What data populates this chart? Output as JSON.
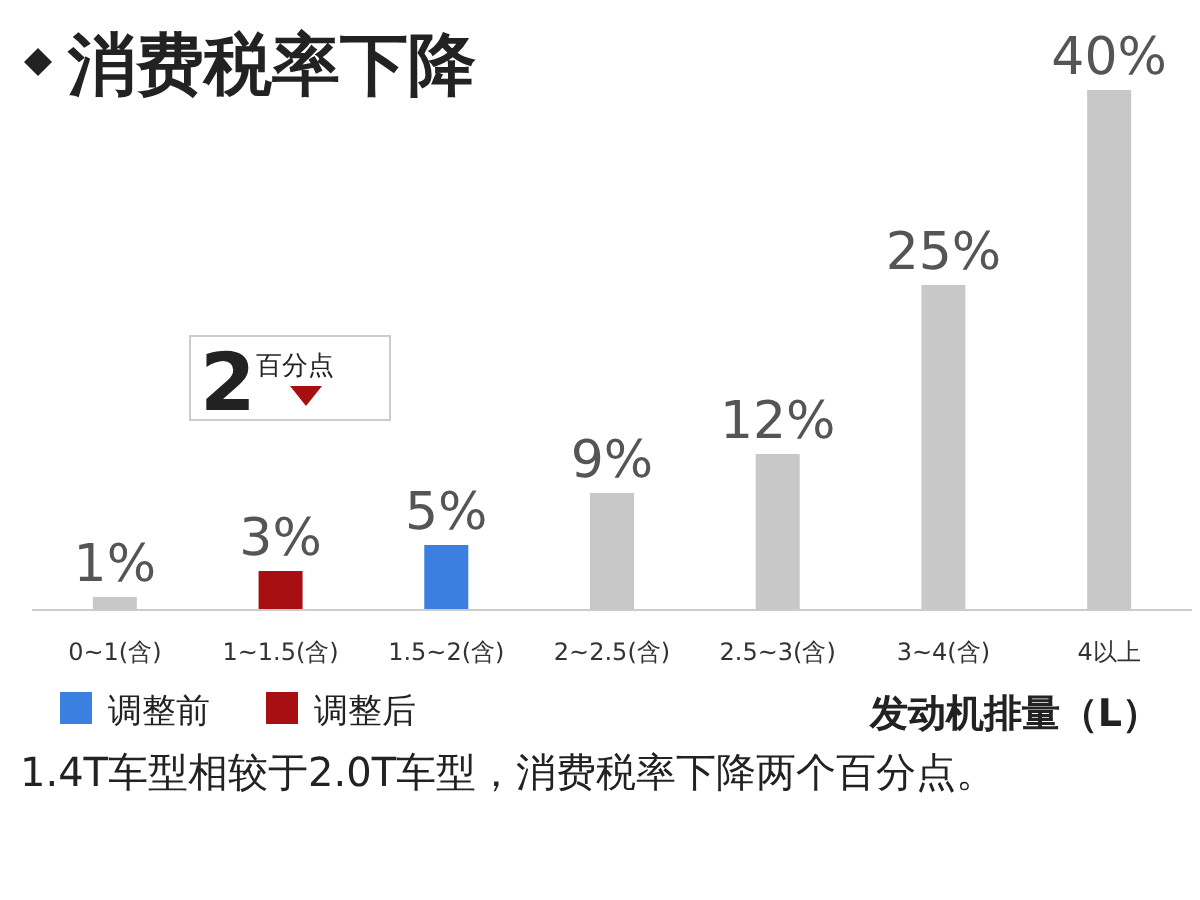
{
  "chart_data": {
    "type": "bar",
    "title": "消费税率下降",
    "xlabel": "发动机排量（L）",
    "categories": [
      "0~1(含)",
      "1~1.5(含)",
      "1.5~2(含)",
      "2~2.5(含)",
      "2.5~3(含)",
      "3~4(含)",
      "4以上"
    ],
    "series": [
      {
        "name": "调整前",
        "color": "#3b7fe0",
        "values": [
          null,
          null,
          5,
          null,
          null,
          null,
          null
        ],
        "value_labels": [
          null,
          null,
          "5%",
          null,
          null,
          null,
          null
        ]
      },
      {
        "name": "调整后",
        "color": "#a80f12",
        "values": [
          null,
          3,
          null,
          null,
          null,
          null,
          null
        ],
        "value_labels": [
          null,
          "3%",
          null,
          null,
          null,
          null,
          null
        ]
      },
      {
        "color": "#c8c8c8",
        "values": [
          1,
          null,
          null,
          9,
          12,
          25,
          40
        ],
        "value_labels": [
          "1%",
          null,
          null,
          "9%",
          "12%",
          "25%",
          "40%"
        ]
      }
    ],
    "legend": "bottom left",
    "annotations": [
      "2$^{百分点}$",
      "1.4T车型相较于2.0T车型，消费税率下降两个百分点。"
    ]
  }
}
